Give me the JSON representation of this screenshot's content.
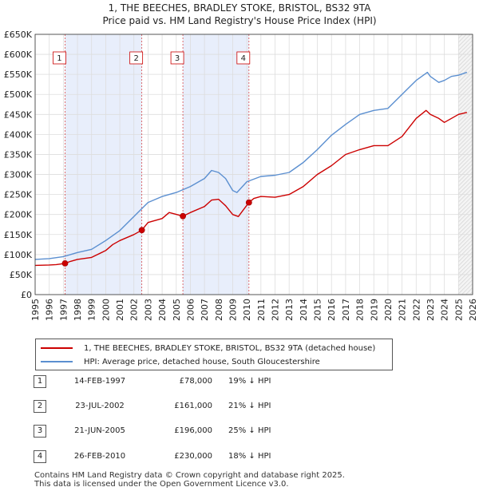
{
  "title_line1": "1, THE BEECHES, BRADLEY STOKE, BRISTOL, BS32 9TA",
  "title_line2": "Price paid vs. HM Land Registry's House Price Index (HPI)",
  "legend": {
    "red_label": "1, THE BEECHES, BRADLEY STOKE, BRISTOL, BS32 9TA (detached house)",
    "blue_label": "HPI: Average price, detached house, South Gloucestershire"
  },
  "colors": {
    "red": "#cc0000",
    "blue": "#5b8fd0",
    "shade": "#e8eefb"
  },
  "sales": [
    {
      "num": "1",
      "date": "14-FEB-1997",
      "price": "£78,000",
      "hpi": "19% ↓ HPI"
    },
    {
      "num": "2",
      "date": "23-JUL-2002",
      "price": "£161,000",
      "hpi": "21% ↓ HPI"
    },
    {
      "num": "3",
      "date": "21-JUN-2005",
      "price": "£196,000",
      "hpi": "25% ↓ HPI"
    },
    {
      "num": "4",
      "date": "26-FEB-2010",
      "price": "£230,000",
      "hpi": "18% ↓ HPI"
    }
  ],
  "footer": {
    "line1": "Contains HM Land Registry data © Crown copyright and database right 2025.",
    "line2": "This data is licensed under the Open Government Licence v3.0."
  },
  "chart_data": {
    "type": "line",
    "xlim": [
      1995,
      2026
    ],
    "ylim": [
      0,
      650000
    ],
    "yticks": [
      0,
      50000,
      100000,
      150000,
      200000,
      250000,
      300000,
      350000,
      400000,
      450000,
      500000,
      550000,
      600000,
      650000
    ],
    "ytick_labels": [
      "£0",
      "£50K",
      "£100K",
      "£150K",
      "£200K",
      "£250K",
      "£300K",
      "£350K",
      "£400K",
      "£450K",
      "£500K",
      "£550K",
      "£600K",
      "£650K"
    ],
    "xticks": [
      1995,
      1996,
      1997,
      1998,
      1999,
      2000,
      2001,
      2002,
      2003,
      2004,
      2005,
      2006,
      2007,
      2008,
      2009,
      2010,
      2011,
      2012,
      2013,
      2014,
      2015,
      2016,
      2017,
      2018,
      2019,
      2020,
      2021,
      2022,
      2023,
      2024,
      2025,
      2026
    ],
    "series": [
      {
        "name": "1, THE BEECHES, BRADLEY STOKE, BRISTOL, BS32 9TA (detached house)",
        "x": [
          1995,
          1996,
          1996.5,
          1997.12,
          1997.5,
          1998,
          1999,
          2000,
          2000.5,
          2001,
          2002,
          2002.56,
          2003,
          2004,
          2004.5,
          2005.47,
          2006,
          2007,
          2007.5,
          2008,
          2008.5,
          2009,
          2009.4,
          2010.15,
          2010.5,
          2011,
          2012,
          2013,
          2014,
          2015,
          2016,
          2017,
          2018,
          2019,
          2020,
          2021,
          2022,
          2022.7,
          2023,
          2023.6,
          2024,
          2024.5,
          2025,
          2025.6
        ],
        "values": [
          73000,
          74000,
          75000,
          78000,
          83000,
          88000,
          93000,
          110000,
          125000,
          135000,
          150000,
          161000,
          180000,
          190000,
          205000,
          196000,
          205000,
          220000,
          236000,
          238000,
          222000,
          200000,
          195000,
          230000,
          240000,
          245000,
          243000,
          250000,
          270000,
          300000,
          322000,
          350000,
          362000,
          372000,
          372000,
          395000,
          440000,
          460000,
          450000,
          440000,
          430000,
          440000,
          450000,
          455000
        ]
      },
      {
        "name": "HPI: Average price, detached house, South Gloucestershire",
        "x": [
          1995,
          1996,
          1997,
          1998,
          1999,
          2000,
          2001,
          2002,
          2003,
          2004,
          2005,
          2006,
          2007,
          2007.5,
          2008,
          2008.5,
          2009,
          2009.3,
          2010,
          2011,
          2012,
          2013,
          2014,
          2015,
          2016,
          2017,
          2018,
          2019,
          2020,
          2021,
          2022,
          2022.8,
          2023,
          2023.6,
          2024,
          2024.5,
          2025,
          2025.6
        ],
        "values": [
          88000,
          90000,
          95000,
          105000,
          113000,
          135000,
          160000,
          195000,
          230000,
          245000,
          255000,
          270000,
          290000,
          310000,
          305000,
          290000,
          260000,
          255000,
          282000,
          295000,
          298000,
          305000,
          330000,
          362000,
          398000,
          425000,
          450000,
          460000,
          465000,
          500000,
          535000,
          555000,
          545000,
          530000,
          535000,
          545000,
          548000,
          555000
        ]
      }
    ],
    "sales_points": [
      {
        "label": "1",
        "x": 1997.12,
        "y": 78000
      },
      {
        "label": "2",
        "x": 2002.56,
        "y": 161000
      },
      {
        "label": "3",
        "x": 2005.47,
        "y": 196000
      },
      {
        "label": "4",
        "x": 2010.15,
        "y": 230000
      }
    ],
    "shaded_ranges": [
      [
        1997.12,
        2002.56
      ],
      [
        2005.47,
        2010.15
      ]
    ],
    "forecast_start": 2025.0,
    "grid": true
  }
}
